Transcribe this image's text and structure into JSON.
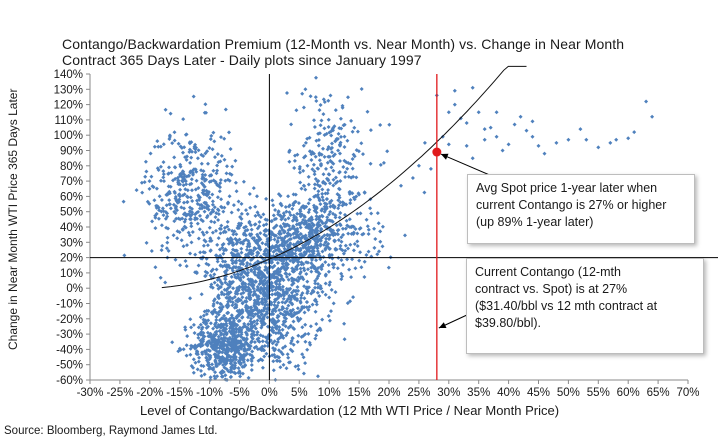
{
  "chart_data": {
    "type": "scatter",
    "title": "Contango/Backwardation  Premium (12-Month vs. Near Month) vs. Change  in Near Month",
    "subtitle": "Contract 365 Days Later  - Daily plots since January 1997",
    "xlabel": "Level of Contango/Backwardation (12 Mth WTI Price / Near Month Price)",
    "ylabel": "Change in Near Month WTI Price 365 Days Later",
    "xlim": [
      -0.3,
      0.7
    ],
    "ylim": [
      -0.6,
      1.4
    ],
    "x_ticks": [
      -0.3,
      -0.25,
      -0.2,
      -0.15,
      -0.1,
      -0.05,
      0,
      0.05,
      0.1,
      0.15,
      0.2,
      0.25,
      0.3,
      0.35,
      0.4,
      0.45,
      0.5,
      0.55,
      0.6,
      0.65,
      0.7
    ],
    "x_tick_labels": [
      "-30%",
      "-25%",
      "-20%",
      "-15%",
      "-10%",
      "-5%",
      "0%",
      "5%",
      "10%",
      "15%",
      "20%",
      "25%",
      "30%",
      "35%",
      "40%",
      "45%",
      "50%",
      "55%",
      "60%",
      "65%",
      "70%"
    ],
    "y_ticks": [
      -0.6,
      -0.5,
      -0.4,
      -0.3,
      -0.2,
      -0.1,
      0,
      0.1,
      0.2,
      0.3,
      0.4,
      0.5,
      0.6,
      0.7,
      0.8,
      0.9,
      1.0,
      1.1,
      1.2,
      1.3,
      1.4
    ],
    "y_tick_labels": [
      "-60%",
      "-50%",
      "-40%",
      "-30%",
      "-20%",
      "-10%",
      "0%",
      "10%",
      "20%",
      "30%",
      "40%",
      "50%",
      "60%",
      "70%",
      "80%",
      "90%",
      "100%",
      "110%",
      "120%",
      "130%",
      "140%"
    ],
    "grid": false,
    "marker_color": "#4f81bd",
    "clusters": [
      {
        "cx": 0.0,
        "cy": -0.05,
        "sx": 0.045,
        "sy": 0.25,
        "n": 950
      },
      {
        "cx": -0.075,
        "cy": -0.38,
        "sx": 0.028,
        "sy": 0.11,
        "n": 520
      },
      {
        "cx": -0.13,
        "cy": 0.62,
        "sx": 0.038,
        "sy": 0.22,
        "n": 420
      },
      {
        "cx": 0.1,
        "cy": 0.72,
        "sx": 0.035,
        "sy": 0.3,
        "n": 320
      },
      {
        "cx": 0.06,
        "cy": 0.32,
        "sx": 0.055,
        "sy": 0.14,
        "n": 480
      },
      {
        "cx": -0.045,
        "cy": 0.1,
        "sx": 0.035,
        "sy": 0.16,
        "n": 260
      }
    ],
    "sparse_points": [
      [
        0.31,
        1.2
      ],
      [
        0.32,
        1.11
      ],
      [
        0.33,
        1.08
      ],
      [
        0.35,
        1.15
      ],
      [
        0.36,
        0.97
      ],
      [
        0.37,
        1.05
      ],
      [
        0.38,
        1.15
      ],
      [
        0.39,
        0.9
      ],
      [
        0.4,
        0.94
      ],
      [
        0.42,
        1.12
      ],
      [
        0.43,
        1.03
      ],
      [
        0.44,
        0.99
      ],
      [
        0.45,
        0.93
      ],
      [
        0.46,
        0.88
      ],
      [
        0.48,
        0.95
      ],
      [
        0.5,
        0.97
      ],
      [
        0.52,
        1.04
      ],
      [
        0.53,
        0.97
      ],
      [
        0.55,
        0.92
      ],
      [
        0.57,
        0.95
      ],
      [
        0.58,
        0.97
      ],
      [
        0.6,
        0.98
      ],
      [
        0.61,
        1.02
      ],
      [
        0.63,
        1.22
      ],
      [
        0.64,
        1.12
      ],
      [
        0.34,
        0.85
      ],
      [
        0.3,
        0.94
      ],
      [
        0.29,
        0.99
      ],
      [
        0.36,
        1.04
      ],
      [
        0.41,
        1.07
      ],
      [
        0.33,
        0.93
      ],
      [
        0.38,
        0.99
      ],
      [
        0.44,
        1.09
      ],
      [
        0.27,
        0.78
      ],
      [
        0.25,
        0.8
      ],
      [
        0.28,
        1.26
      ],
      [
        0.34,
        1.31
      ],
      [
        0.31,
        1.29
      ],
      [
        0.3,
        1.15
      ],
      [
        0.26,
        0.95
      ],
      [
        0.24,
        0.72
      ],
      [
        0.22,
        0.67
      ]
    ],
    "trendline": {
      "type": "polynomial",
      "coefficients": [
        0.19,
        1.7,
        3.7
      ],
      "x_range": [
        -0.18,
        0.43
      ]
    },
    "reference_lines": {
      "vertical_x": 0.28,
      "vertical_color": "#e0191b",
      "horizontal_y": 0.2
    },
    "highlight_point": {
      "x": 0.28,
      "y": 0.89,
      "color": "#e0191b"
    },
    "annotations": [
      "Avg Spot price 1-year later when current Contango is 27% or higher (up 89% 1-year later)",
      "Current Contango (12-mth contract vs. Spot) is at 27% ($31.40/bbl vs 12 mth contract at $39.80/bbl)."
    ]
  },
  "callouts": {
    "avg_spot": [
      "Avg Spot price 1-year later when",
      "current Contango is 27% or higher",
      "(up 89% 1-year later)"
    ],
    "current_contango": [
      "Current Contango (12-mth",
      "contract vs. Spot) is at 27%",
      "($31.40/bbl vs 12 mth contract at",
      "$39.80/bbl)."
    ]
  },
  "source": "Source: Bloomberg, Raymond James Ltd."
}
